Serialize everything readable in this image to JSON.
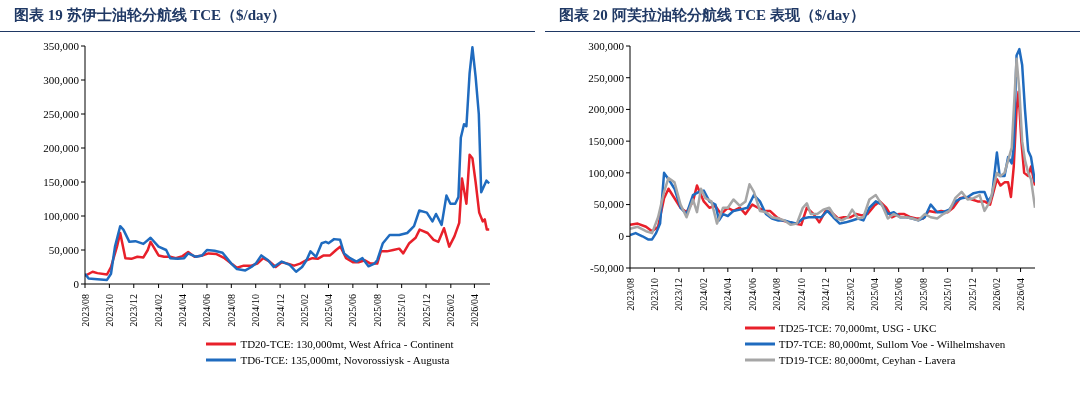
{
  "chart_data": [
    {
      "type": "line",
      "title": "图表 19 苏伊士油轮分航线 TCE（$/day）",
      "legend": "bottom",
      "xlim": [
        "2023-08-01",
        "2026-05-10"
      ],
      "xticks": [
        {
          "value": "2023-08-01",
          "label": "2023/08"
        },
        {
          "value": "2023-10-01",
          "label": "2023/10"
        },
        {
          "value": "2023-12-01",
          "label": "2023/12"
        },
        {
          "value": "2024-02-01",
          "label": "2024/02"
        },
        {
          "value": "2024-04-01",
          "label": "2024/04"
        },
        {
          "value": "2024-06-01",
          "label": "2024/06"
        },
        {
          "value": "2024-08-01",
          "label": "2024/08"
        },
        {
          "value": "2024-10-01",
          "label": "2024/10"
        },
        {
          "value": "2024-12-01",
          "label": "2024/12"
        },
        {
          "value": "2025-02-01",
          "label": "2025/02"
        },
        {
          "value": "2025-04-01",
          "label": "2025/04"
        },
        {
          "value": "2025-06-01",
          "label": "2025/06"
        },
        {
          "value": "2025-08-01",
          "label": "2025/08"
        },
        {
          "value": "2025-10-01",
          "label": "2025/10"
        },
        {
          "value": "2025-12-01",
          "label": "2025/12"
        },
        {
          "value": "2026-02-01",
          "label": "2026/02"
        },
        {
          "value": "2026-04-01",
          "label": "2026/04"
        }
      ],
      "ylim": [
        0,
        350000
      ],
      "yticks": [
        0,
        {
          "value": 50000,
          "label": "50,000"
        },
        {
          "value": 100000,
          "label": "100,000"
        },
        {
          "value": 150000,
          "label": "150,000"
        },
        {
          "value": 200000,
          "label": "200,000"
        },
        {
          "value": 250000,
          "label": "250,000"
        },
        {
          "value": 300000,
          "label": "300,000"
        },
        {
          "value": 350000,
          "label": "350,000"
        }
      ],
      "series": [
        {
          "name": "TD20-TCE: 130,000mt, West Africa - Continent",
          "color": "#e8202a",
          "x": [
            "2023-08-01",
            "2023-08-20",
            "2023-09-01",
            "2023-09-25",
            "2023-10-05",
            "2023-10-20",
            "2023-10-28",
            "2023-11-10",
            "2023-11-25",
            "2023-12-10",
            "2023-12-25",
            "2024-01-05",
            "2024-01-12",
            "2024-02-01",
            "2024-02-15",
            "2024-03-01",
            "2024-03-15",
            "2024-04-01",
            "2024-04-15",
            "2024-05-01",
            "2024-05-20",
            "2024-06-05",
            "2024-06-25",
            "2024-07-15",
            "2024-08-01",
            "2024-08-15",
            "2024-09-01",
            "2024-09-20",
            "2024-10-05",
            "2024-10-20",
            "2024-11-05",
            "2024-11-20",
            "2024-12-05",
            "2024-12-20",
            "2025-01-05",
            "2025-01-20",
            "2025-02-05",
            "2025-02-20",
            "2025-03-05",
            "2025-03-20",
            "2025-04-05",
            "2025-04-20",
            "2025-05-01",
            "2025-05-15",
            "2025-06-01",
            "2025-06-15",
            "2025-07-01",
            "2025-07-15",
            "2025-08-01",
            "2025-08-10",
            "2025-08-25",
            "2025-09-10",
            "2025-09-25",
            "2025-10-05",
            "2025-10-20",
            "2025-11-05",
            "2025-11-15",
            "2025-12-05",
            "2025-12-20",
            "2026-01-01",
            "2026-01-15",
            "2026-01-28",
            "2026-02-10",
            "2026-02-22",
            "2026-03-01",
            "2026-03-12",
            "2026-03-20",
            "2026-03-27",
            "2026-04-04",
            "2026-04-13",
            "2026-04-22",
            "2026-04-27",
            "2026-05-02",
            "2026-05-08"
          ],
          "values": [
            12000,
            18000,
            16000,
            14000,
            25000,
            55000,
            75000,
            38000,
            37000,
            40000,
            39000,
            50000,
            62000,
            42000,
            40000,
            40000,
            38000,
            41000,
            47000,
            40000,
            42000,
            45000,
            44000,
            38000,
            30000,
            24000,
            27000,
            27000,
            30000,
            38000,
            33000,
            25000,
            32000,
            30000,
            27000,
            30000,
            35000,
            38000,
            37000,
            42000,
            42000,
            50000,
            55000,
            38000,
            32000,
            32000,
            35000,
            30000,
            30000,
            48000,
            48000,
            50000,
            52000,
            45000,
            60000,
            68000,
            80000,
            75000,
            65000,
            62000,
            82000,
            55000,
            70000,
            90000,
            155000,
            118000,
            190000,
            185000,
            150000,
            105000,
            92000,
            95000,
            80000,
            80000
          ]
        },
        {
          "name": "TD6-TCE:  135,000mt, Novorossiysk - Augusta",
          "color": "#1f6bbf",
          "x": [
            "2023-08-01",
            "2023-08-10",
            "2023-09-01",
            "2023-09-25",
            "2023-10-05",
            "2023-10-15",
            "2023-10-28",
            "2023-11-05",
            "2023-11-20",
            "2023-12-05",
            "2023-12-25",
            "2024-01-12",
            "2024-02-01",
            "2024-02-20",
            "2024-03-01",
            "2024-03-20",
            "2024-04-05",
            "2024-04-15",
            "2024-05-05",
            "2024-05-20",
            "2024-06-01",
            "2024-06-20",
            "2024-07-10",
            "2024-08-01",
            "2024-08-15",
            "2024-09-05",
            "2024-09-20",
            "2024-10-01",
            "2024-10-15",
            "2024-11-01",
            "2024-11-15",
            "2024-12-05",
            "2024-12-25",
            "2025-01-10",
            "2025-01-25",
            "2025-02-05",
            "2025-02-15",
            "2025-03-01",
            "2025-03-15",
            "2025-03-25",
            "2025-04-01",
            "2025-04-15",
            "2025-04-30",
            "2025-05-10",
            "2025-05-25",
            "2025-06-10",
            "2025-06-25",
            "2025-07-10",
            "2025-07-25",
            "2025-08-01",
            "2025-08-15",
            "2025-09-01",
            "2025-09-25",
            "2025-10-15",
            "2025-11-01",
            "2025-11-14",
            "2025-12-03",
            "2025-12-17",
            "2025-12-26",
            "2026-01-09",
            "2026-01-21",
            "2026-01-31",
            "2026-02-12",
            "2026-02-20",
            "2026-02-26",
            "2026-03-06",
            "2026-03-12",
            "2026-03-20",
            "2026-03-27",
            "2026-04-04",
            "2026-04-12",
            "2026-04-18",
            "2026-05-01",
            "2026-05-08"
          ],
          "values": [
            15000,
            8000,
            7000,
            6000,
            15000,
            55000,
            85000,
            80000,
            62000,
            63000,
            59000,
            68000,
            55000,
            50000,
            38000,
            37000,
            38000,
            45000,
            40000,
            42000,
            50000,
            49000,
            46000,
            30000,
            22000,
            20000,
            25000,
            30000,
            42000,
            35000,
            25000,
            33000,
            28000,
            18000,
            25000,
            35000,
            48000,
            40000,
            60000,
            62000,
            60000,
            66000,
            65000,
            45000,
            38000,
            33000,
            38000,
            26000,
            30000,
            35000,
            60000,
            72000,
            72000,
            75000,
            85000,
            108000,
            105000,
            92000,
            103000,
            87000,
            130000,
            118000,
            118000,
            128000,
            215000,
            235000,
            232000,
            310000,
            348000,
            305000,
            250000,
            135000,
            152000,
            148000
          ]
        }
      ]
    },
    {
      "type": "line",
      "title": "图表 20 阿芙拉油轮分航线 TCE 表现（$/day）",
      "legend": "bottom",
      "xlim": [
        "2023-08-01",
        "2026-05-07"
      ],
      "xticks": [
        {
          "value": "2023-08-01",
          "label": "2023/08"
        },
        {
          "value": "2023-10-01",
          "label": "2023/10"
        },
        {
          "value": "2023-12-01",
          "label": "2023/12"
        },
        {
          "value": "2024-02-01",
          "label": "2024/02"
        },
        {
          "value": "2024-04-01",
          "label": "2024/04"
        },
        {
          "value": "2024-06-01",
          "label": "2024/06"
        },
        {
          "value": "2024-08-01",
          "label": "2024/08"
        },
        {
          "value": "2024-10-01",
          "label": "2024/10"
        },
        {
          "value": "2024-12-01",
          "label": "2024/12"
        },
        {
          "value": "2025-02-01",
          "label": "2025/02"
        },
        {
          "value": "2025-04-01",
          "label": "2025/04"
        },
        {
          "value": "2025-06-01",
          "label": "2025/06"
        },
        {
          "value": "2025-08-01",
          "label": "2025/08"
        },
        {
          "value": "2025-10-01",
          "label": "2025/10"
        },
        {
          "value": "2025-12-01",
          "label": "2025/12"
        },
        {
          "value": "2026-02-01",
          "label": "2026/02"
        },
        {
          "value": "2026-04-01",
          "label": "2026/04"
        }
      ],
      "ylim": [
        -50000,
        300000
      ],
      "yticks": [
        {
          "value": -50000,
          "label": "-50,000"
        },
        0,
        {
          "value": 50000,
          "label": "50,000"
        },
        {
          "value": 100000,
          "label": "100,000"
        },
        {
          "value": 150000,
          "label": "150,000"
        },
        {
          "value": 200000,
          "label": "200,000"
        },
        {
          "value": 250000,
          "label": "250,000"
        },
        {
          "value": 300000,
          "label": "300,000"
        }
      ],
      "series": [
        {
          "name": "TD25-TCE: 70,000mt, USG - UKC",
          "color": "#e8202a",
          "x": [
            "2023-08-01",
            "2023-08-20",
            "2023-09-10",
            "2023-09-25",
            "2023-10-10",
            "2023-10-25",
            "2023-11-05",
            "2023-11-20",
            "2023-12-05",
            "2023-12-20",
            "2024-01-05",
            "2024-01-15",
            "2024-02-01",
            "2024-02-15",
            "2024-03-01",
            "2024-03-15",
            "2024-04-01",
            "2024-04-15",
            "2024-05-01",
            "2024-05-15",
            "2024-06-01",
            "2024-06-15",
            "2024-07-01",
            "2024-07-15",
            "2024-08-01",
            "2024-08-15",
            "2024-09-01",
            "2024-09-15",
            "2024-10-01",
            "2024-10-15",
            "2024-11-01",
            "2024-11-15",
            "2024-12-01",
            "2024-12-15",
            "2025-01-01",
            "2025-01-15",
            "2025-02-01",
            "2025-02-15",
            "2025-03-01",
            "2025-03-15",
            "2025-04-01",
            "2025-04-15",
            "2025-05-01",
            "2025-05-15",
            "2025-06-01",
            "2025-06-15",
            "2025-07-01",
            "2025-07-15",
            "2025-08-01",
            "2025-08-15",
            "2025-09-01",
            "2025-09-15",
            "2025-10-01",
            "2025-10-15",
            "2025-11-01",
            "2025-11-15",
            "2025-12-01",
            "2025-12-15",
            "2026-01-01",
            "2026-01-15",
            "2026-02-01",
            "2026-02-10",
            "2026-02-20",
            "2026-03-01",
            "2026-03-08",
            "2026-03-15",
            "2026-03-22",
            "2026-03-27",
            "2026-04-03",
            "2026-04-10",
            "2026-04-20",
            "2026-04-27",
            "2026-05-07"
          ],
          "values": [
            18000,
            20000,
            15000,
            8000,
            15000,
            60000,
            75000,
            60000,
            45000,
            38000,
            55000,
            80000,
            55000,
            45000,
            48000,
            35000,
            45000,
            40000,
            45000,
            35000,
            50000,
            45000,
            40000,
            40000,
            30000,
            25000,
            22000,
            20000,
            18000,
            45000,
            35000,
            22000,
            40000,
            38000,
            28000,
            30000,
            30000,
            35000,
            33000,
            35000,
            48000,
            55000,
            45000,
            30000,
            35000,
            35000,
            30000,
            28000,
            28000,
            40000,
            38000,
            40000,
            38000,
            45000,
            60000,
            62000,
            58000,
            55000,
            55000,
            50000,
            90000,
            80000,
            85000,
            85000,
            62000,
            110000,
            200000,
            228000,
            150000,
            100000,
            95000,
            110000,
            80000
          ]
        },
        {
          "name": "TD7-TCE:  80,000mt, Sullom Voe - Wilhelmshaven",
          "color": "#1f6bbf",
          "x": [
            "2023-08-01",
            "2023-08-15",
            "2023-09-01",
            "2023-09-15",
            "2023-09-25",
            "2023-10-05",
            "2023-10-15",
            "2023-10-25",
            "2023-11-05",
            "2023-11-20",
            "2023-12-05",
            "2023-12-20",
            "2024-01-05",
            "2024-01-20",
            "2024-02-01",
            "2024-02-15",
            "2024-03-01",
            "2024-03-10",
            "2024-03-20",
            "2024-04-01",
            "2024-04-15",
            "2024-05-01",
            "2024-05-20",
            "2024-06-05",
            "2024-06-20",
            "2024-07-05",
            "2024-07-20",
            "2024-08-05",
            "2024-08-20",
            "2024-09-05",
            "2024-09-20",
            "2024-10-05",
            "2024-10-20",
            "2024-11-05",
            "2024-11-20",
            "2024-12-05",
            "2024-12-20",
            "2025-01-05",
            "2025-01-20",
            "2025-02-05",
            "2025-02-20",
            "2025-03-05",
            "2025-03-20",
            "2025-04-05",
            "2025-04-20",
            "2025-05-05",
            "2025-05-20",
            "2025-06-05",
            "2025-06-20",
            "2025-07-05",
            "2025-07-20",
            "2025-08-05",
            "2025-08-20",
            "2025-09-05",
            "2025-09-20",
            "2025-10-05",
            "2025-10-20",
            "2025-11-05",
            "2025-11-20",
            "2025-12-05",
            "2025-12-20",
            "2026-01-01",
            "2026-01-10",
            "2026-01-20",
            "2026-02-01",
            "2026-02-08",
            "2026-02-20",
            "2026-03-01",
            "2026-03-10",
            "2026-03-15",
            "2026-03-22",
            "2026-03-29",
            "2026-04-05",
            "2026-04-12",
            "2026-04-20",
            "2026-04-27",
            "2026-05-07"
          ],
          "values": [
            2000,
            5000,
            0,
            -5000,
            -5000,
            5000,
            20000,
            100000,
            90000,
            75000,
            45000,
            35000,
            65000,
            70000,
            72000,
            55000,
            50000,
            25000,
            35000,
            32000,
            40000,
            42000,
            45000,
            65000,
            55000,
            35000,
            28000,
            25000,
            25000,
            22000,
            20000,
            28000,
            30000,
            30000,
            30000,
            40000,
            30000,
            20000,
            22000,
            25000,
            28000,
            25000,
            45000,
            55000,
            50000,
            35000,
            38000,
            30000,
            30000,
            28000,
            25000,
            30000,
            50000,
            38000,
            38000,
            42000,
            55000,
            60000,
            62000,
            68000,
            70000,
            70000,
            55000,
            65000,
            132000,
            95000,
            95000,
            125000,
            115000,
            140000,
            285000,
            295000,
            270000,
            200000,
            135000,
            125000,
            85000
          ]
        },
        {
          "name": "TD19-TCE: 80,000mt, Ceyhan - Lavera",
          "color": "#a6a6a6",
          "x": [
            "2023-08-01",
            "2023-08-20",
            "2023-09-10",
            "2023-09-25",
            "2023-10-10",
            "2023-10-25",
            "2023-11-05",
            "2023-11-20",
            "2023-12-05",
            "2023-12-20",
            "2024-01-05",
            "2024-01-15",
            "2024-01-25",
            "2024-02-05",
            "2024-02-20",
            "2024-03-05",
            "2024-03-20",
            "2024-04-01",
            "2024-04-15",
            "2024-05-01",
            "2024-05-15",
            "2024-05-25",
            "2024-06-05",
            "2024-06-20",
            "2024-07-05",
            "2024-07-20",
            "2024-08-05",
            "2024-08-20",
            "2024-09-05",
            "2024-09-20",
            "2024-10-05",
            "2024-10-15",
            "2024-10-25",
            "2024-11-10",
            "2024-11-25",
            "2024-12-10",
            "2024-12-25",
            "2025-01-10",
            "2025-01-25",
            "2025-02-05",
            "2025-02-20",
            "2025-03-05",
            "2025-03-20",
            "2025-04-05",
            "2025-04-20",
            "2025-05-05",
            "2025-05-20",
            "2025-06-05",
            "2025-06-20",
            "2025-07-05",
            "2025-07-20",
            "2025-08-05",
            "2025-08-20",
            "2025-09-05",
            "2025-09-20",
            "2025-10-05",
            "2025-10-20",
            "2025-11-05",
            "2025-11-20",
            "2025-12-05",
            "2025-12-20",
            "2026-01-01",
            "2026-01-15",
            "2026-02-01",
            "2026-02-10",
            "2026-02-20",
            "2026-03-01",
            "2026-03-10",
            "2026-03-22",
            "2026-03-29",
            "2026-04-05",
            "2026-04-12",
            "2026-04-20",
            "2026-04-27",
            "2026-05-07"
          ],
          "values": [
            12000,
            15000,
            8000,
            5000,
            30000,
            70000,
            92000,
            85000,
            50000,
            30000,
            58000,
            38000,
            75000,
            60000,
            55000,
            20000,
            45000,
            45000,
            58000,
            48000,
            55000,
            82000,
            70000,
            40000,
            38000,
            30000,
            28000,
            25000,
            18000,
            20000,
            45000,
            52000,
            35000,
            35000,
            42000,
            45000,
            30000,
            25000,
            30000,
            42000,
            28000,
            30000,
            58000,
            65000,
            50000,
            28000,
            35000,
            30000,
            30000,
            28000,
            25000,
            35000,
            30000,
            28000,
            35000,
            40000,
            60000,
            70000,
            58000,
            60000,
            65000,
            40000,
            55000,
            100000,
            95000,
            100000,
            120000,
            140000,
            280000,
            230000,
            150000,
            120000,
            100000,
            90000,
            45000
          ]
        }
      ]
    }
  ]
}
